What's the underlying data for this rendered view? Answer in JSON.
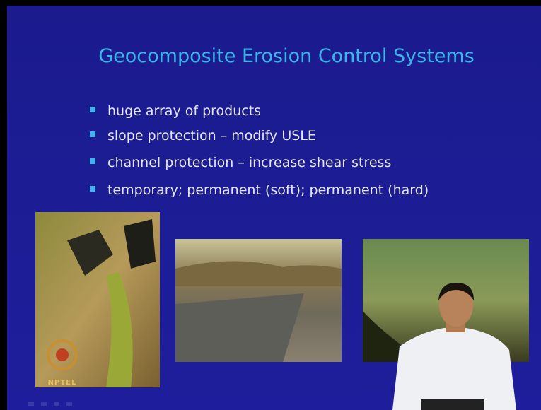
{
  "slide": {
    "title": "Geocomposite Erosion Control Systems",
    "bullets": [
      "huge array of products",
      "slope protection – modify USLE",
      "channel protection – increase shear stress",
      "temporary; permanent (soft); permanent (hard)"
    ],
    "logo": "NPTEL"
  }
}
